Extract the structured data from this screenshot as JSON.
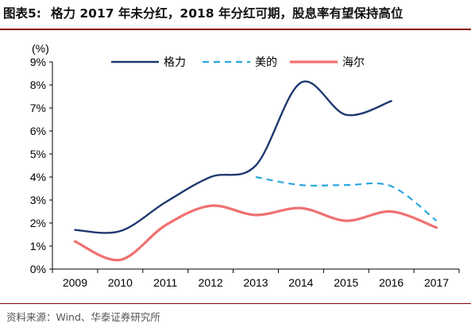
{
  "header": {
    "label": "图表5:",
    "title": "格力 2017 年未分红，2018 年分红可期，股息率有望保持高位"
  },
  "source": "资料来源：Wind、华泰证券研究所",
  "chart_data": {
    "type": "line",
    "unit_label": "(%)",
    "categories": [
      "2009",
      "2010",
      "2011",
      "2012",
      "2013",
      "2014",
      "2015",
      "2016",
      "2017"
    ],
    "y_ticks": [
      "0%",
      "1%",
      "2%",
      "3%",
      "4%",
      "5%",
      "6%",
      "7%",
      "8%",
      "9%"
    ],
    "ylim": [
      0,
      9
    ],
    "grid": false,
    "legend_position": "top",
    "series": [
      {
        "name": "格力",
        "color": "#1f3a70",
        "style": "solid",
        "values": [
          1.7,
          1.65,
          2.9,
          4.0,
          4.5,
          8.1,
          6.7,
          7.3,
          null
        ]
      },
      {
        "name": "美的",
        "color": "#2aa7e0",
        "style": "dashed",
        "values": [
          null,
          null,
          null,
          null,
          4.0,
          3.65,
          3.65,
          3.6,
          2.1
        ]
      },
      {
        "name": "海尔",
        "color": "#f07070",
        "style": "solid",
        "values": [
          1.2,
          0.4,
          1.9,
          2.75,
          2.35,
          2.65,
          2.1,
          2.5,
          1.8
        ]
      }
    ]
  }
}
